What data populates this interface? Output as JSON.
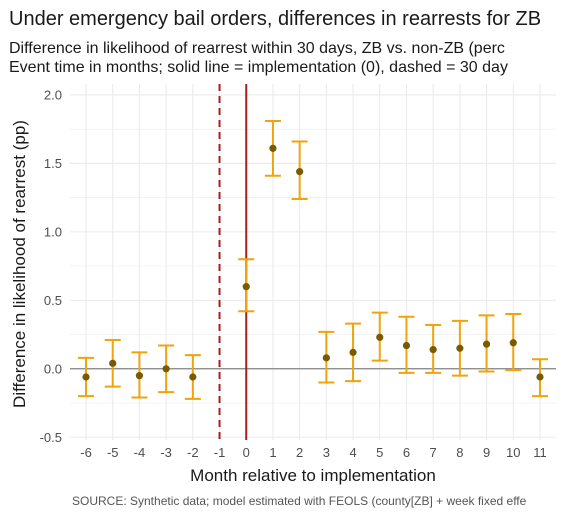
{
  "chart_data": {
    "type": "scatter",
    "title": "Under emergency bail orders, differences in rearrests for ZB",
    "subtitle_lines": [
      "Difference in likelihood of rearrest within 30 days, ZB vs. non-ZB (perc",
      "Event time in months; solid line = implementation (0), dashed = 30 day"
    ],
    "xlabel": "Month relative to implementation",
    "ylabel": "Difference in likelihood of rearrest (pp)",
    "caption": "SOURCE: Synthetic data; model estimated with FEOLS (county[ZB] + week fixed effe",
    "x_ticks": [
      -6,
      -5,
      -4,
      -3,
      -2,
      -1,
      0,
      1,
      2,
      3,
      4,
      5,
      6,
      7,
      8,
      9,
      10,
      11
    ],
    "y_ticks": [
      -0.5,
      0.0,
      0.5,
      1.0,
      1.5,
      2.0
    ],
    "y_tick_labels": [
      "-0.5",
      "0.0",
      "0.5",
      "1.0",
      "1.5",
      "2.0"
    ],
    "xlim": [
      -6.6,
      11.6
    ],
    "ylim": [
      -0.52,
      2.08
    ],
    "grid": true,
    "reference_lines": {
      "horizontal_zero": 0,
      "solid_vertical": 0,
      "dashed_vertical": -1
    },
    "colors": {
      "point": "#7a5a00",
      "errorbar": "#f0a30a",
      "solid_line": "#a32020",
      "dashed_line": "#a32020",
      "zero_line": "#555555",
      "grid": "#ebebeb"
    },
    "points": [
      {
        "x": -6,
        "y": -0.06,
        "lo": -0.2,
        "hi": 0.08
      },
      {
        "x": -5,
        "y": 0.04,
        "lo": -0.13,
        "hi": 0.21
      },
      {
        "x": -4,
        "y": -0.05,
        "lo": -0.21,
        "hi": 0.12
      },
      {
        "x": -3,
        "y": 0.0,
        "lo": -0.17,
        "hi": 0.17
      },
      {
        "x": -2,
        "y": -0.06,
        "lo": -0.22,
        "hi": 0.1
      },
      {
        "x": 0,
        "y": 0.6,
        "lo": 0.42,
        "hi": 0.8
      },
      {
        "x": 1,
        "y": 1.61,
        "lo": 1.41,
        "hi": 1.81
      },
      {
        "x": 2,
        "y": 1.44,
        "lo": 1.24,
        "hi": 1.66
      },
      {
        "x": 3,
        "y": 0.08,
        "lo": -0.1,
        "hi": 0.27
      },
      {
        "x": 4,
        "y": 0.12,
        "lo": -0.09,
        "hi": 0.33
      },
      {
        "x": 5,
        "y": 0.23,
        "lo": 0.06,
        "hi": 0.41
      },
      {
        "x": 6,
        "y": 0.17,
        "lo": -0.03,
        "hi": 0.38
      },
      {
        "x": 7,
        "y": 0.14,
        "lo": -0.03,
        "hi": 0.32
      },
      {
        "x": 8,
        "y": 0.15,
        "lo": -0.05,
        "hi": 0.35
      },
      {
        "x": 9,
        "y": 0.18,
        "lo": -0.02,
        "hi": 0.39
      },
      {
        "x": 10,
        "y": 0.19,
        "lo": -0.01,
        "hi": 0.4
      },
      {
        "x": 11,
        "y": -0.06,
        "lo": -0.2,
        "hi": 0.07
      }
    ]
  }
}
